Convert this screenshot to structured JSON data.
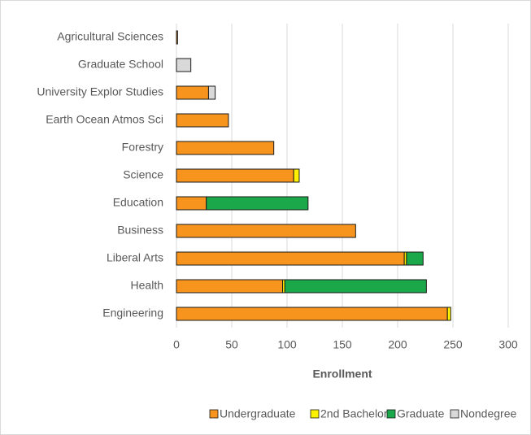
{
  "chart_data": {
    "type": "bar",
    "orientation": "horizontal",
    "stacked": true,
    "categories": [
      "Agricultural Sciences",
      "Graduate School",
      "University Explor Studies",
      "Earth Ocean Atmos Sci",
      "Forestry",
      "Science",
      "Education",
      "Business",
      "Liberal Arts",
      "Health",
      "Engineering"
    ],
    "series": [
      {
        "name": "Undergraduate",
        "color": "#f7941d",
        "values": [
          1,
          0,
          29,
          47,
          88,
          106,
          27,
          162,
          206,
          96,
          245
        ]
      },
      {
        "name": "2nd Bachelor",
        "color": "#fff200",
        "values": [
          0,
          0,
          0,
          0,
          0,
          5,
          0,
          0,
          2,
          2,
          3
        ]
      },
      {
        "name": "Graduate",
        "color": "#1ba84a",
        "values": [
          0,
          0,
          0,
          0,
          0,
          0,
          92,
          0,
          15,
          128,
          0
        ]
      },
      {
        "name": "Nondegree",
        "color": "#d9d9d9",
        "values": [
          0,
          13,
          6,
          0,
          0,
          0,
          0,
          0,
          0,
          0,
          0
        ]
      }
    ],
    "xlabel": "Enrollment",
    "xlim": [
      0,
      300
    ],
    "xticks": [
      0,
      50,
      100,
      150,
      200,
      250,
      300
    ],
    "grid": true,
    "legend": "bottom"
  }
}
